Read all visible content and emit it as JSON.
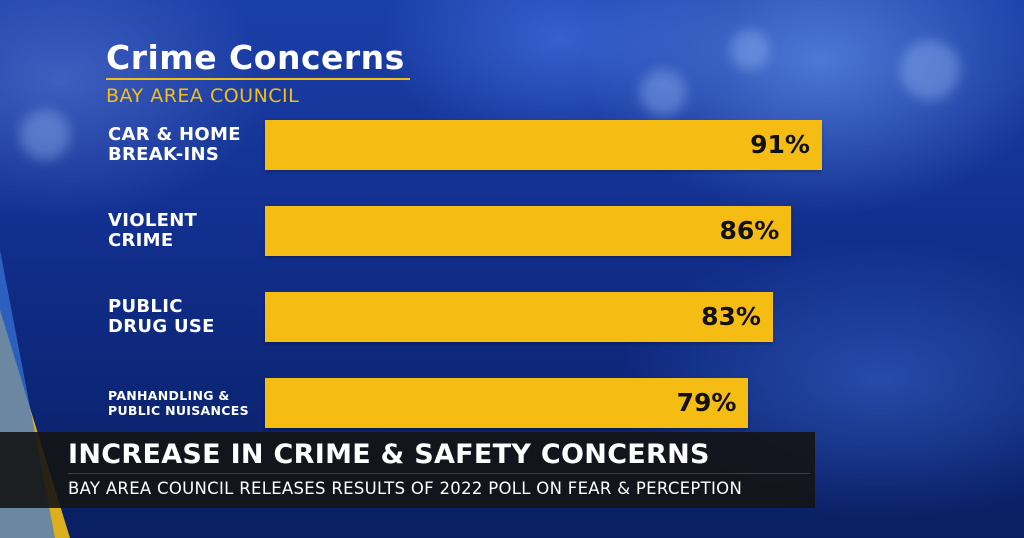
{
  "header": {
    "title": "Crime Concerns",
    "subtitle": "BAY AREA COUNCIL"
  },
  "chart_data": {
    "type": "bar",
    "orientation": "horizontal",
    "title": "Crime Concerns",
    "subtitle": "BAY AREA COUNCIL",
    "categories": [
      [
        "CAR & HOME",
        "BREAK-INS"
      ],
      [
        "VIOLENT",
        "CRIME"
      ],
      [
        "PUBLIC",
        "DRUG USE"
      ],
      [
        "PANHANDLING &",
        "PUBLIC NUISANCES"
      ]
    ],
    "values": [
      91,
      86,
      83,
      79
    ],
    "value_labels": [
      "91%",
      "86%",
      "83%",
      "79%"
    ],
    "xlim": [
      0,
      100
    ],
    "grid": false,
    "bar_color": "#f5bd13"
  },
  "lower_third": {
    "headline": "INCREASE IN CRIME & SAFETY CONCERNS",
    "subline": "BAY AREA COUNCIL RELEASES RESULTS OF 2022 POLL ON FEAR & PERCEPTION"
  },
  "colors": {
    "accent": "#f3bf17",
    "background": "#123090",
    "lower_third_band": "#141414"
  }
}
